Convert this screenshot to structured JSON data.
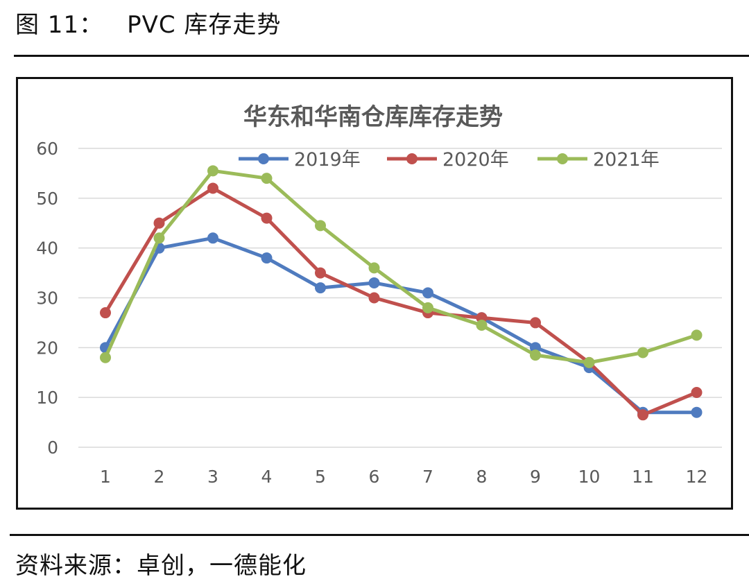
{
  "figure": {
    "label": "图 11：",
    "title": "PVC 库存走势"
  },
  "source_note": "资料来源：卓创，一德能化",
  "chart_data": {
    "type": "line",
    "title": "华东和华南仓库库存走势",
    "xlabel": "",
    "ylabel": "",
    "categories": [
      "1",
      "2",
      "3",
      "4",
      "5",
      "6",
      "7",
      "8",
      "9",
      "10",
      "11",
      "12"
    ],
    "ylim": [
      0,
      60
    ],
    "yticks": [
      0,
      10,
      20,
      30,
      40,
      50,
      60
    ],
    "grid": true,
    "legend_position": "top",
    "series": [
      {
        "name": "2019年",
        "color": "#4f7bbf",
        "values": [
          20,
          40,
          42,
          38,
          32,
          33,
          31,
          26,
          20,
          16,
          7,
          7
        ]
      },
      {
        "name": "2020年",
        "color": "#c0504d",
        "values": [
          27,
          45,
          52,
          46,
          35,
          30,
          27,
          26,
          25,
          17,
          6.5,
          11
        ]
      },
      {
        "name": "2021年",
        "color": "#9bbb59",
        "values": [
          18,
          42,
          55.5,
          54,
          44.5,
          36,
          28,
          24.5,
          18.5,
          17,
          19,
          22.5
        ]
      }
    ]
  }
}
